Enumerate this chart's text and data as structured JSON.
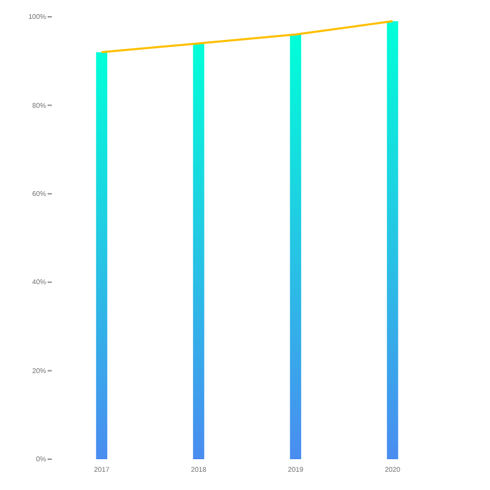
{
  "chart_data": {
    "type": "bar",
    "categories": [
      "2017",
      "2018",
      "2019",
      "2020"
    ],
    "series": [
      {
        "color": "#00ffd8",
        "values": [
          92,
          94,
          96,
          99
        ]
      },
      {
        "type": "line",
        "color": "#ffc000",
        "values": [
          92,
          94,
          96,
          99
        ]
      }
    ],
    "ylim": [
      0,
      100
    ],
    "yticks": [
      {
        "value": 0,
        "label": "0%"
      },
      {
        "value": 20,
        "label": "20%"
      },
      {
        "value": 40,
        "label": "40%"
      },
      {
        "value": 60,
        "label": "60%"
      },
      {
        "value": 80,
        "label": "80%"
      },
      {
        "value": 100,
        "label": "100%"
      }
    ],
    "grid": false
  }
}
